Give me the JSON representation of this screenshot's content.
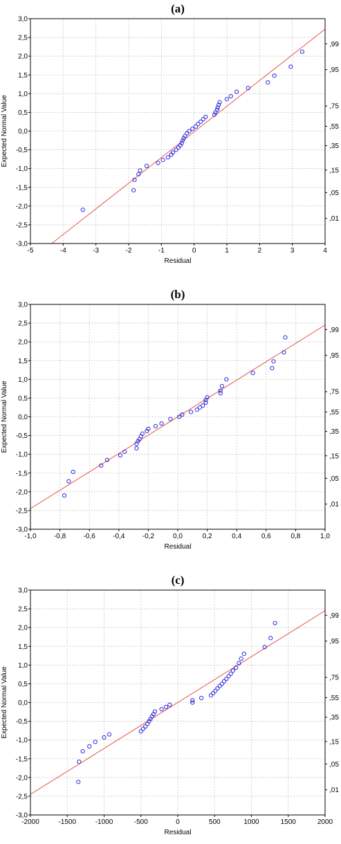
{
  "chart_data": [
    {
      "type": "scatter",
      "panel_label": "(a)",
      "xlabel": "Residual",
      "ylabel": "Expected Normal Value",
      "xlim": [
        -5,
        4
      ],
      "ylim": [
        -3,
        3
      ],
      "x_ticks": [
        "-5",
        "-4",
        "-3",
        "-2",
        "-1",
        "0",
        "1",
        "2",
        "3",
        "4"
      ],
      "y_ticks": [
        "-3,0",
        "-2,5",
        "-2,0",
        "-1,5",
        "-1,0",
        "-0,5",
        "0,0",
        "0,5",
        "1,0",
        "1,5",
        "2,0",
        "2,5",
        "3,0"
      ],
      "prob_ticks": [
        {
          "label": ",99",
          "y": 2.33
        },
        {
          "label": ",95",
          "y": 1.64
        },
        {
          "label": ",75",
          "y": 0.67
        },
        {
          "label": ",55",
          "y": 0.13
        },
        {
          "label": ",35",
          "y": -0.39
        },
        {
          "label": ",15",
          "y": -1.04
        },
        {
          "label": ",05",
          "y": -1.64
        },
        {
          "label": ",01",
          "y": -2.33
        }
      ],
      "grid": true,
      "fit_line": [
        [
          -4.35,
          -3.0
        ],
        [
          4.0,
          2.72
        ]
      ],
      "points": [
        [
          -3.4,
          -2.1
        ],
        [
          -1.85,
          -1.58
        ],
        [
          -1.82,
          -1.3
        ],
        [
          -1.7,
          -1.15
        ],
        [
          -1.65,
          -1.05
        ],
        [
          -1.45,
          -0.93
        ],
        [
          -1.1,
          -0.85
        ],
        [
          -0.95,
          -0.77
        ],
        [
          -0.8,
          -0.7
        ],
        [
          -0.7,
          -0.63
        ],
        [
          -0.65,
          -0.57
        ],
        [
          -0.55,
          -0.5
        ],
        [
          -0.48,
          -0.44
        ],
        [
          -0.42,
          -0.38
        ],
        [
          -0.38,
          -0.32
        ],
        [
          -0.35,
          -0.25
        ],
        [
          -0.32,
          -0.19
        ],
        [
          -0.28,
          -0.13
        ],
        [
          -0.22,
          -0.06
        ],
        [
          -0.15,
          0.0
        ],
        [
          -0.05,
          0.06
        ],
        [
          0.05,
          0.12
        ],
        [
          0.12,
          0.19
        ],
        [
          0.2,
          0.25
        ],
        [
          0.28,
          0.32
        ],
        [
          0.35,
          0.38
        ],
        [
          0.62,
          0.44
        ],
        [
          0.65,
          0.5
        ],
        [
          0.7,
          0.57
        ],
        [
          0.72,
          0.63
        ],
        [
          0.75,
          0.7
        ],
        [
          0.78,
          0.77
        ],
        [
          1.0,
          0.85
        ],
        [
          1.12,
          0.93
        ],
        [
          1.3,
          1.05
        ],
        [
          1.65,
          1.15
        ],
        [
          2.25,
          1.3
        ],
        [
          2.45,
          1.48
        ],
        [
          2.95,
          1.72
        ],
        [
          3.3,
          2.12
        ]
      ]
    },
    {
      "type": "scatter",
      "panel_label": "(b)",
      "xlabel": "Residual",
      "ylabel": "Expected Normal Value",
      "xlim": [
        -1.0,
        1.0
      ],
      "ylim": [
        -3,
        3
      ],
      "x_ticks": [
        "-1,0",
        "-0,8",
        "-0,6",
        "-0,4",
        "-0,2",
        "0,0",
        "0,2",
        "0,4",
        "0,6",
        "0,8",
        "1,0"
      ],
      "y_ticks": [
        "-3,0",
        "-2,5",
        "-2,0",
        "-1,5",
        "-1,0",
        "-0,5",
        "0,0",
        "0,5",
        "1,0",
        "1,5",
        "2,0",
        "2,5",
        "3,0"
      ],
      "prob_ticks": [
        {
          "label": ",99",
          "y": 2.33
        },
        {
          "label": ",95",
          "y": 1.64
        },
        {
          "label": ",75",
          "y": 0.67
        },
        {
          "label": ",55",
          "y": 0.13
        },
        {
          "label": ",35",
          "y": -0.39
        },
        {
          "label": ",15",
          "y": -1.04
        },
        {
          "label": ",05",
          "y": -1.64
        },
        {
          "label": ",01",
          "y": -2.33
        }
      ],
      "grid": true,
      "fit_line": [
        [
          -1.0,
          -2.45
        ],
        [
          1.0,
          2.45
        ]
      ],
      "points": [
        [
          -0.77,
          -2.1
        ],
        [
          -0.74,
          -1.72
        ],
        [
          -0.71,
          -1.47
        ],
        [
          -0.52,
          -1.3
        ],
        [
          -0.48,
          -1.15
        ],
        [
          -0.39,
          -1.03
        ],
        [
          -0.36,
          -0.93
        ],
        [
          -0.28,
          -0.84
        ],
        [
          -0.28,
          -0.72
        ],
        [
          -0.27,
          -0.65
        ],
        [
          -0.26,
          -0.6
        ],
        [
          -0.25,
          -0.52
        ],
        [
          -0.24,
          -0.45
        ],
        [
          -0.21,
          -0.38
        ],
        [
          -0.2,
          -0.32
        ],
        [
          -0.15,
          -0.25
        ],
        [
          -0.11,
          -0.18
        ],
        [
          -0.05,
          -0.06
        ],
        [
          0.01,
          0.0
        ],
        [
          0.03,
          0.06
        ],
        [
          0.09,
          0.13
        ],
        [
          0.13,
          0.19
        ],
        [
          0.15,
          0.25
        ],
        [
          0.17,
          0.3
        ],
        [
          0.19,
          0.38
        ],
        [
          0.19,
          0.45
        ],
        [
          0.2,
          0.52
        ],
        [
          0.29,
          0.63
        ],
        [
          0.29,
          0.7
        ],
        [
          0.3,
          0.82
        ],
        [
          0.33,
          1.0
        ],
        [
          0.51,
          1.17
        ],
        [
          0.64,
          1.3
        ],
        [
          0.65,
          1.48
        ],
        [
          0.72,
          1.72
        ],
        [
          0.73,
          2.12
        ]
      ]
    },
    {
      "type": "scatter",
      "panel_label": "(c)",
      "xlabel": "Residual",
      "ylabel": "Expected Normal Value",
      "xlim": [
        -2000,
        2000
      ],
      "ylim": [
        -3,
        3
      ],
      "x_ticks": [
        "-2000",
        "-1500",
        "-1000",
        "-500",
        "0",
        "500",
        "1000",
        "1500",
        "2000"
      ],
      "y_ticks": [
        "-3,0",
        "-2,5",
        "-2,0",
        "-1,5",
        "-1,0",
        "-0,5",
        "0,0",
        "0,5",
        "1,0",
        "1,5",
        "2,0",
        "2,5",
        "3,0"
      ],
      "prob_ticks": [
        {
          "label": ",99",
          "y": 2.33
        },
        {
          "label": ",95",
          "y": 1.64
        },
        {
          "label": ",75",
          "y": 0.67
        },
        {
          "label": ",55",
          "y": 0.13
        },
        {
          "label": ",35",
          "y": -0.39
        },
        {
          "label": ",15",
          "y": -1.04
        },
        {
          "label": ",05",
          "y": -1.64
        },
        {
          "label": ",01",
          "y": -2.33
        }
      ],
      "grid": true,
      "fit_line": [
        [
          -2000,
          -2.45
        ],
        [
          2000,
          2.45
        ]
      ],
      "points": [
        [
          -1350,
          -2.12
        ],
        [
          -1340,
          -1.58
        ],
        [
          -1290,
          -1.3
        ],
        [
          -1200,
          -1.17
        ],
        [
          -1120,
          -1.05
        ],
        [
          -1000,
          -0.93
        ],
        [
          -930,
          -0.85
        ],
        [
          -500,
          -0.77
        ],
        [
          -470,
          -0.7
        ],
        [
          -440,
          -0.64
        ],
        [
          -410,
          -0.57
        ],
        [
          -390,
          -0.5
        ],
        [
          -370,
          -0.44
        ],
        [
          -350,
          -0.37
        ],
        [
          -330,
          -0.31
        ],
        [
          -310,
          -0.24
        ],
        [
          -220,
          -0.18
        ],
        [
          -160,
          -0.12
        ],
        [
          -110,
          -0.06
        ],
        [
          200,
          0.0
        ],
        [
          200,
          0.06
        ],
        [
          320,
          0.12
        ],
        [
          450,
          0.19
        ],
        [
          480,
          0.25
        ],
        [
          510,
          0.31
        ],
        [
          540,
          0.38
        ],
        [
          570,
          0.44
        ],
        [
          600,
          0.5
        ],
        [
          630,
          0.57
        ],
        [
          660,
          0.63
        ],
        [
          690,
          0.7
        ],
        [
          720,
          0.77
        ],
        [
          750,
          0.85
        ],
        [
          790,
          0.93
        ],
        [
          830,
          1.05
        ],
        [
          860,
          1.17
        ],
        [
          900,
          1.3
        ],
        [
          1180,
          1.48
        ],
        [
          1260,
          1.72
        ],
        [
          1320,
          2.12
        ]
      ]
    }
  ]
}
